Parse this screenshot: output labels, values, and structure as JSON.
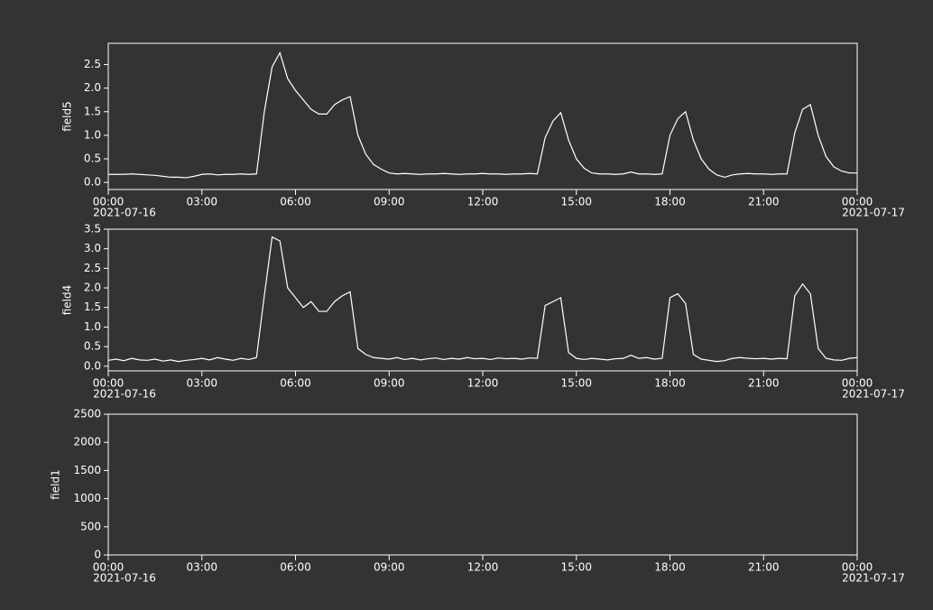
{
  "chart_data": [
    {
      "type": "line",
      "ylabel": "field5",
      "x": [
        "2021-07-16 00:00",
        "2021-07-16 00:15",
        "2021-07-16 00:30",
        "2021-07-16 00:45",
        "2021-07-16 01:00",
        "2021-07-16 01:15",
        "2021-07-16 01:30",
        "2021-07-16 01:45",
        "2021-07-16 02:00",
        "2021-07-16 02:15",
        "2021-07-16 02:30",
        "2021-07-16 02:45",
        "2021-07-16 03:00",
        "2021-07-16 03:15",
        "2021-07-16 03:30",
        "2021-07-16 03:45",
        "2021-07-16 04:00",
        "2021-07-16 04:15",
        "2021-07-16 04:30",
        "2021-07-16 04:45",
        "2021-07-16 05:00",
        "2021-07-16 05:15",
        "2021-07-16 05:30",
        "2021-07-16 05:45",
        "2021-07-16 06:00",
        "2021-07-16 06:15",
        "2021-07-16 06:30",
        "2021-07-16 06:45",
        "2021-07-16 07:00",
        "2021-07-16 07:15",
        "2021-07-16 07:30",
        "2021-07-16 07:45",
        "2021-07-16 08:00",
        "2021-07-16 08:15",
        "2021-07-16 08:30",
        "2021-07-16 08:45",
        "2021-07-16 09:00",
        "2021-07-16 09:15",
        "2021-07-16 09:30",
        "2021-07-16 09:45",
        "2021-07-16 10:00",
        "2021-07-16 10:15",
        "2021-07-16 10:30",
        "2021-07-16 10:45",
        "2021-07-16 11:00",
        "2021-07-16 11:15",
        "2021-07-16 11:30",
        "2021-07-16 11:45",
        "2021-07-16 12:00",
        "2021-07-16 12:15",
        "2021-07-16 12:30",
        "2021-07-16 12:45",
        "2021-07-16 13:00",
        "2021-07-16 13:15",
        "2021-07-16 13:30",
        "2021-07-16 13:45",
        "2021-07-16 14:00",
        "2021-07-16 14:15",
        "2021-07-16 14:30",
        "2021-07-16 14:45",
        "2021-07-16 15:00",
        "2021-07-16 15:15",
        "2021-07-16 15:30",
        "2021-07-16 15:45",
        "2021-07-16 16:00",
        "2021-07-16 16:15",
        "2021-07-16 16:30",
        "2021-07-16 16:45",
        "2021-07-16 17:00",
        "2021-07-16 17:15",
        "2021-07-16 17:30",
        "2021-07-16 17:45",
        "2021-07-16 18:00",
        "2021-07-16 18:15",
        "2021-07-16 18:30",
        "2021-07-16 18:45",
        "2021-07-16 19:00",
        "2021-07-16 19:15",
        "2021-07-16 19:30",
        "2021-07-16 19:45",
        "2021-07-16 20:00",
        "2021-07-16 20:15",
        "2021-07-16 20:30",
        "2021-07-16 20:45",
        "2021-07-16 21:00",
        "2021-07-16 21:15",
        "2021-07-16 21:30",
        "2021-07-16 21:45",
        "2021-07-16 22:00",
        "2021-07-16 22:15",
        "2021-07-16 22:30",
        "2021-07-16 22:45",
        "2021-07-16 23:00",
        "2021-07-16 23:15",
        "2021-07-16 23:30",
        "2021-07-16 23:45",
        "2021-07-17 00:00"
      ],
      "series": [
        {
          "color": "#ffffff",
          "values": [
            0.17,
            0.17,
            0.17,
            0.18,
            0.17,
            0.16,
            0.15,
            0.13,
            0.11,
            0.11,
            0.1,
            0.13,
            0.17,
            0.18,
            0.16,
            0.17,
            0.17,
            0.18,
            0.17,
            0.18,
            1.5,
            2.45,
            2.75,
            2.2,
            1.95,
            1.75,
            1.55,
            1.45,
            1.45,
            1.65,
            1.75,
            1.82,
            1.0,
            0.6,
            0.38,
            0.28,
            0.2,
            0.18,
            0.19,
            0.18,
            0.17,
            0.18,
            0.18,
            0.19,
            0.18,
            0.17,
            0.18,
            0.18,
            0.19,
            0.18,
            0.18,
            0.17,
            0.18,
            0.18,
            0.19,
            0.18,
            0.95,
            1.3,
            1.48,
            0.9,
            0.5,
            0.3,
            0.2,
            0.18,
            0.18,
            0.17,
            0.18,
            0.22,
            0.18,
            0.18,
            0.17,
            0.18,
            1.0,
            1.35,
            1.5,
            0.9,
            0.5,
            0.28,
            0.16,
            0.11,
            0.16,
            0.18,
            0.19,
            0.18,
            0.18,
            0.17,
            0.18,
            0.18,
            1.05,
            1.55,
            1.65,
            1.0,
            0.55,
            0.33,
            0.24,
            0.2,
            0.2
          ]
        }
      ],
      "xlim": [
        "2021-07-16 00:00",
        "2021-07-17 00:00"
      ],
      "xticks": [
        {
          "value": "2021-07-16 00:00",
          "label": "00:00",
          "date": "2021-07-16"
        },
        {
          "value": "2021-07-16 03:00",
          "label": "03:00"
        },
        {
          "value": "2021-07-16 06:00",
          "label": "06:00"
        },
        {
          "value": "2021-07-16 09:00",
          "label": "09:00"
        },
        {
          "value": "2021-07-16 12:00",
          "label": "12:00"
        },
        {
          "value": "2021-07-16 15:00",
          "label": "15:00"
        },
        {
          "value": "2021-07-16 18:00",
          "label": "18:00"
        },
        {
          "value": "2021-07-16 21:00",
          "label": "21:00"
        },
        {
          "value": "2021-07-17 00:00",
          "label": "00:00",
          "date": "2021-07-17"
        }
      ],
      "ylim": [
        -0.15,
        2.95
      ],
      "yticks": [
        {
          "value": 0,
          "label": "0.0"
        },
        0.5,
        {
          "value": 1,
          "label": "1.0"
        },
        1.5,
        {
          "value": 2,
          "label": "2.0"
        },
        2.5
      ]
    },
    {
      "type": "line",
      "ylabel": "field4",
      "x": [
        "2021-07-16 00:00",
        "2021-07-16 00:15",
        "2021-07-16 00:30",
        "2021-07-16 00:45",
        "2021-07-16 01:00",
        "2021-07-16 01:15",
        "2021-07-16 01:30",
        "2021-07-16 01:45",
        "2021-07-16 02:00",
        "2021-07-16 02:15",
        "2021-07-16 02:30",
        "2021-07-16 02:45",
        "2021-07-16 03:00",
        "2021-07-16 03:15",
        "2021-07-16 03:30",
        "2021-07-16 03:45",
        "2021-07-16 04:00",
        "2021-07-16 04:15",
        "2021-07-16 04:30",
        "2021-07-16 04:45",
        "2021-07-16 05:00",
        "2021-07-16 05:15",
        "2021-07-16 05:30",
        "2021-07-16 05:45",
        "2021-07-16 06:00",
        "2021-07-16 06:15",
        "2021-07-16 06:30",
        "2021-07-16 06:45",
        "2021-07-16 07:00",
        "2021-07-16 07:15",
        "2021-07-16 07:30",
        "2021-07-16 07:45",
        "2021-07-16 08:00",
        "2021-07-16 08:15",
        "2021-07-16 08:30",
        "2021-07-16 08:45",
        "2021-07-16 09:00",
        "2021-07-16 09:15",
        "2021-07-16 09:30",
        "2021-07-16 09:45",
        "2021-07-16 10:00",
        "2021-07-16 10:15",
        "2021-07-16 10:30",
        "2021-07-16 10:45",
        "2021-07-16 11:00",
        "2021-07-16 11:15",
        "2021-07-16 11:30",
        "2021-07-16 11:45",
        "2021-07-16 12:00",
        "2021-07-16 12:15",
        "2021-07-16 12:30",
        "2021-07-16 12:45",
        "2021-07-16 13:00",
        "2021-07-16 13:15",
        "2021-07-16 13:30",
        "2021-07-16 13:45",
        "2021-07-16 14:00",
        "2021-07-16 14:15",
        "2021-07-16 14:30",
        "2021-07-16 14:45",
        "2021-07-16 15:00",
        "2021-07-16 15:15",
        "2021-07-16 15:30",
        "2021-07-16 15:45",
        "2021-07-16 16:00",
        "2021-07-16 16:15",
        "2021-07-16 16:30",
        "2021-07-16 16:45",
        "2021-07-16 17:00",
        "2021-07-16 17:15",
        "2021-07-16 17:30",
        "2021-07-16 17:45",
        "2021-07-16 18:00",
        "2021-07-16 18:15",
        "2021-07-16 18:30",
        "2021-07-16 18:45",
        "2021-07-16 19:00",
        "2021-07-16 19:15",
        "2021-07-16 19:30",
        "2021-07-16 19:45",
        "2021-07-16 20:00",
        "2021-07-16 20:15",
        "2021-07-16 20:30",
        "2021-07-16 20:45",
        "2021-07-16 21:00",
        "2021-07-16 21:15",
        "2021-07-16 21:30",
        "2021-07-16 21:45",
        "2021-07-16 22:00",
        "2021-07-16 22:15",
        "2021-07-16 22:30",
        "2021-07-16 22:45",
        "2021-07-16 23:00",
        "2021-07-16 23:15",
        "2021-07-16 23:30",
        "2021-07-16 23:45",
        "2021-07-17 00:00"
      ],
      "series": [
        {
          "color": "#ffffff",
          "values": [
            0.15,
            0.18,
            0.14,
            0.2,
            0.16,
            0.15,
            0.18,
            0.13,
            0.16,
            0.12,
            0.15,
            0.17,
            0.2,
            0.16,
            0.22,
            0.18,
            0.15,
            0.2,
            0.17,
            0.22,
            1.8,
            3.3,
            3.2,
            2.0,
            1.75,
            1.5,
            1.65,
            1.4,
            1.4,
            1.65,
            1.8,
            1.9,
            0.45,
            0.3,
            0.22,
            0.2,
            0.18,
            0.22,
            0.17,
            0.2,
            0.16,
            0.19,
            0.21,
            0.17,
            0.2,
            0.18,
            0.22,
            0.19,
            0.2,
            0.17,
            0.21,
            0.19,
            0.2,
            0.18,
            0.21,
            0.2,
            1.55,
            1.65,
            1.75,
            0.35,
            0.2,
            0.17,
            0.2,
            0.18,
            0.16,
            0.19,
            0.2,
            0.28,
            0.2,
            0.22,
            0.18,
            0.2,
            1.75,
            1.85,
            1.6,
            0.3,
            0.18,
            0.15,
            0.12,
            0.14,
            0.2,
            0.22,
            0.2,
            0.19,
            0.2,
            0.18,
            0.2,
            0.19,
            1.8,
            2.1,
            1.85,
            0.45,
            0.2,
            0.16,
            0.15,
            0.2,
            0.22
          ]
        }
      ],
      "xlim": [
        "2021-07-16 00:00",
        "2021-07-17 00:00"
      ],
      "xticks": [
        {
          "value": "2021-07-16 00:00",
          "label": "00:00",
          "date": "2021-07-16"
        },
        {
          "value": "2021-07-16 03:00",
          "label": "03:00"
        },
        {
          "value": "2021-07-16 06:00",
          "label": "06:00"
        },
        {
          "value": "2021-07-16 09:00",
          "label": "09:00"
        },
        {
          "value": "2021-07-16 12:00",
          "label": "12:00"
        },
        {
          "value": "2021-07-16 15:00",
          "label": "15:00"
        },
        {
          "value": "2021-07-16 18:00",
          "label": "18:00"
        },
        {
          "value": "2021-07-16 21:00",
          "label": "21:00"
        },
        {
          "value": "2021-07-17 00:00",
          "label": "00:00",
          "date": "2021-07-17"
        }
      ],
      "ylim": [
        -0.12,
        3.5
      ],
      "yticks": [
        {
          "value": 0,
          "label": "0.0"
        },
        0.5,
        {
          "value": 1,
          "label": "1.0"
        },
        1.5,
        {
          "value": 2,
          "label": "2.0"
        },
        2.5,
        {
          "value": 3,
          "label": "3.0"
        },
        3.5
      ]
    },
    {
      "type": "line",
      "ylabel": "field1",
      "xlim": [
        "2021-07-16 00:00",
        "2021-07-17 00:00"
      ],
      "xticks": [
        {
          "value": "2021-07-16 00:00",
          "label": "00:00",
          "date": "2021-07-16"
        },
        {
          "value": "2021-07-16 03:00",
          "label": "03:00"
        },
        {
          "value": "2021-07-16 06:00",
          "label": "06:00"
        },
        {
          "value": "2021-07-16 09:00",
          "label": "09:00"
        },
        {
          "value": "2021-07-16 12:00",
          "label": "12:00"
        },
        {
          "value": "2021-07-16 15:00",
          "label": "15:00"
        },
        {
          "value": "2021-07-16 18:00",
          "label": "18:00"
        },
        {
          "value": "2021-07-16 21:00",
          "label": "21:00"
        },
        {
          "value": "2021-07-17 00:00",
          "label": "00:00",
          "date": "2021-07-17"
        }
      ],
      "ylim": [
        0,
        2500
      ],
      "yticks": [
        0,
        500,
        1000,
        1500,
        2000,
        2500
      ]
    }
  ]
}
